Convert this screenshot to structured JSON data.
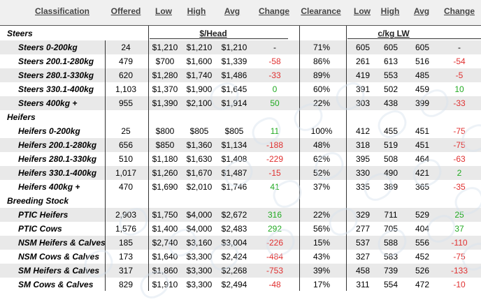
{
  "headers": {
    "classification": "Classification",
    "offered": "Offered",
    "low": "Low",
    "high": "High",
    "avg": "Avg",
    "change": "Change",
    "clearance": "Clearance",
    "low2": "Low",
    "high2": "High",
    "avg2": "Avg",
    "change2": "Change"
  },
  "units": {
    "head": "$/Head",
    "lw": "c/kg LW"
  },
  "rows": [
    {
      "type": "section",
      "label": "Steers"
    },
    {
      "type": "item",
      "label": "Steers 0-200kg",
      "offered": "24",
      "low": "$1,210",
      "high": "$1,210",
      "avg": "$1,210",
      "change": "-",
      "clearance": "71%",
      "lw_low": "605",
      "lw_high": "605",
      "lw_avg": "605",
      "lw_change": "-"
    },
    {
      "type": "item",
      "label": "Steers 200.1-280kg",
      "offered": "479",
      "low": "$700",
      "high": "$1,600",
      "avg": "$1,339",
      "change": "-58",
      "clearance": "86%",
      "lw_low": "261",
      "lw_high": "613",
      "lw_avg": "516",
      "lw_change": "-54"
    },
    {
      "type": "item",
      "label": "Steers 280.1-330kg",
      "offered": "620",
      "low": "$1,280",
      "high": "$1,740",
      "avg": "$1,486",
      "change": "-33",
      "clearance": "89%",
      "lw_low": "419",
      "lw_high": "553",
      "lw_avg": "485",
      "lw_change": "-5"
    },
    {
      "type": "item",
      "label": "Steers 330.1-400kg",
      "offered": "1,103",
      "low": "$1,370",
      "high": "$1,900",
      "avg": "$1,645",
      "change": "0",
      "clearance": "60%",
      "lw_low": "391",
      "lw_high": "502",
      "lw_avg": "459",
      "lw_change": "10"
    },
    {
      "type": "item",
      "label": "Steers 400kg +",
      "offered": "955",
      "low": "$1,390",
      "high": "$2,100",
      "avg": "$1,914",
      "change": "50",
      "clearance": "22%",
      "lw_low": "303",
      "lw_high": "438",
      "lw_avg": "399",
      "lw_change": "-33"
    },
    {
      "type": "section",
      "label": "Heifers"
    },
    {
      "type": "item",
      "label": "Heifers 0-200kg",
      "offered": "25",
      "low": "$800",
      "high": "$805",
      "avg": "$805",
      "change": "11",
      "clearance": "100%",
      "lw_low": "412",
      "lw_high": "455",
      "lw_avg": "451",
      "lw_change": "-75"
    },
    {
      "type": "item",
      "label": "Heifers 200.1-280kg",
      "offered": "656",
      "low": "$850",
      "high": "$1,360",
      "avg": "$1,134",
      "change": "-188",
      "clearance": "48%",
      "lw_low": "318",
      "lw_high": "519",
      "lw_avg": "451",
      "lw_change": "-75"
    },
    {
      "type": "item",
      "label": "Heifers 280.1-330kg",
      "offered": "510",
      "low": "$1,180",
      "high": "$1,630",
      "avg": "$1,408",
      "change": "-229",
      "clearance": "62%",
      "lw_low": "395",
      "lw_high": "508",
      "lw_avg": "464",
      "lw_change": "-63"
    },
    {
      "type": "item",
      "label": "Heifers 330.1-400kg",
      "offered": "1,017",
      "low": "$1,260",
      "high": "$1,670",
      "avg": "$1,487",
      "change": "-15",
      "clearance": "52%",
      "lw_low": "330",
      "lw_high": "490",
      "lw_avg": "421",
      "lw_change": "2"
    },
    {
      "type": "item",
      "label": "Heifers 400kg +",
      "offered": "470",
      "low": "$1,690",
      "high": "$2,010",
      "avg": "$1,746",
      "change": "41",
      "clearance": "37%",
      "lw_low": "335",
      "lw_high": "389",
      "lw_avg": "365",
      "lw_change": "-35"
    },
    {
      "type": "section",
      "label": "Breeding Stock"
    },
    {
      "type": "item",
      "label": "PTIC Heifers",
      "offered": "2,903",
      "low": "$1,750",
      "high": "$4,000",
      "avg": "$2,672",
      "change": "316",
      "clearance": "22%",
      "lw_low": "329",
      "lw_high": "711",
      "lw_avg": "529",
      "lw_change": "25"
    },
    {
      "type": "item",
      "label": "PTIC Cows",
      "offered": "1,576",
      "low": "$1,400",
      "high": "$4,000",
      "avg": "$2,483",
      "change": "292",
      "clearance": "56%",
      "lw_low": "277",
      "lw_high": "705",
      "lw_avg": "404",
      "lw_change": "37"
    },
    {
      "type": "item",
      "label": "NSM Heifers & Calves",
      "offered": "185",
      "low": "$2,740",
      "high": "$3,160",
      "avg": "$3,004",
      "change": "-226",
      "clearance": "15%",
      "lw_low": "537",
      "lw_high": "588",
      "lw_avg": "556",
      "lw_change": "-110"
    },
    {
      "type": "item",
      "label": "NSM Cows & Calves",
      "offered": "173",
      "low": "$1,640",
      "high": "$3,300",
      "avg": "$2,424",
      "change": "-484",
      "clearance": "43%",
      "lw_low": "327",
      "lw_high": "583",
      "lw_avg": "452",
      "lw_change": "-75"
    },
    {
      "type": "item",
      "label": "SM Heifers & Calves",
      "offered": "317",
      "low": "$1,860",
      "high": "$3,300",
      "avg": "$2,268",
      "change": "-753",
      "clearance": "39%",
      "lw_low": "458",
      "lw_high": "739",
      "lw_avg": "526",
      "lw_change": "-133"
    },
    {
      "type": "item",
      "label": "SM Cows & Calves",
      "offered": "829",
      "low": "$1,910",
      "high": "$3,300",
      "avg": "$2,494",
      "change": "-48",
      "clearance": "17%",
      "lw_low": "311",
      "lw_high": "554",
      "lw_avg": "472",
      "lw_change": "-10"
    }
  ],
  "colors": {
    "negative": "#e03030",
    "positive": "#22aa22",
    "shade": "#e9e9e9"
  }
}
